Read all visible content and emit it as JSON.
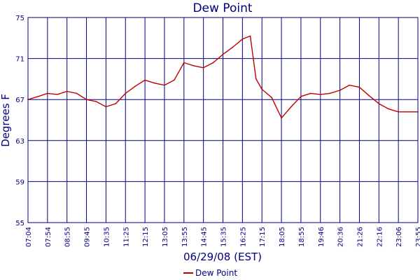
{
  "chart_data": {
    "type": "line",
    "title": "Dew Point",
    "xlabel": "06/29/08 (EST)",
    "ylabel": "Degrees F",
    "ylim": [
      55,
      75
    ],
    "yticks": [
      55,
      59,
      63,
      67,
      71,
      75
    ],
    "categories": [
      "07:04",
      "07:54",
      "08:55",
      "09:45",
      "10:35",
      "11:25",
      "12:15",
      "13:05",
      "13:55",
      "14:45",
      "15:35",
      "16:25",
      "17:15",
      "18:05",
      "18:55",
      "19:46",
      "20:36",
      "21:26",
      "22:16",
      "23:06",
      "23:55"
    ],
    "grid": true,
    "legend_position": "bottom",
    "series": [
      {
        "name": "Dew Point",
        "color": "#c00000",
        "x": [
          "07:04",
          "07:30",
          "07:54",
          "08:25",
          "08:55",
          "09:20",
          "09:45",
          "10:10",
          "10:35",
          "11:00",
          "11:25",
          "11:50",
          "12:15",
          "12:40",
          "13:05",
          "13:30",
          "13:55",
          "14:20",
          "14:45",
          "15:10",
          "15:35",
          "16:00",
          "16:25",
          "16:45",
          "17:00",
          "17:15",
          "17:40",
          "18:05",
          "18:30",
          "18:55",
          "19:20",
          "19:46",
          "20:10",
          "20:36",
          "21:00",
          "21:26",
          "21:50",
          "22:16",
          "22:40",
          "23:06",
          "23:30",
          "23:55"
        ],
        "values": [
          67.0,
          67.3,
          67.6,
          67.5,
          67.8,
          67.6,
          67.0,
          66.8,
          66.3,
          66.6,
          67.6,
          68.3,
          68.9,
          68.6,
          68.4,
          68.9,
          70.6,
          70.3,
          70.1,
          70.6,
          71.4,
          72.1,
          72.9,
          73.2,
          69.0,
          68.0,
          67.2,
          65.2,
          66.3,
          67.3,
          67.6,
          67.5,
          67.6,
          67.9,
          68.4,
          68.2,
          67.4,
          66.6,
          66.1,
          65.8,
          65.8,
          65.8
        ]
      }
    ]
  }
}
